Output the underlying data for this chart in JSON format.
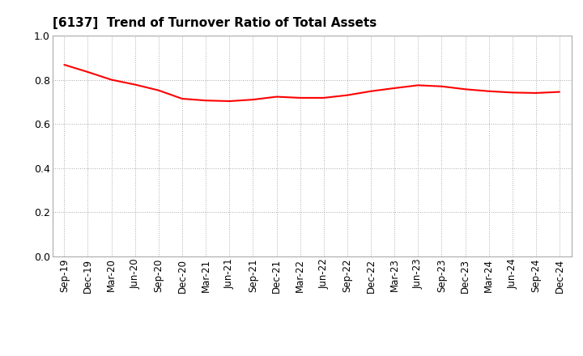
{
  "title": "[6137]  Trend of Turnover Ratio of Total Assets",
  "title_fontsize": 11,
  "line_color": "#FF0000",
  "line_width": 1.5,
  "background_color": "#FFFFFF",
  "grid_color": "#AAAAAA",
  "ylim": [
    0.0,
    1.0
  ],
  "yticks": [
    0.0,
    0.2,
    0.4,
    0.6,
    0.8,
    1.0
  ],
  "x_labels": [
    "Sep-19",
    "Dec-19",
    "Mar-20",
    "Jun-20",
    "Sep-20",
    "Dec-20",
    "Mar-21",
    "Jun-21",
    "Sep-21",
    "Dec-21",
    "Mar-22",
    "Jun-22",
    "Sep-22",
    "Dec-22",
    "Mar-23",
    "Jun-23",
    "Sep-23",
    "Dec-23",
    "Mar-24",
    "Jun-24",
    "Sep-24",
    "Dec-24"
  ],
  "values": [
    0.868,
    0.835,
    0.8,
    0.778,
    0.752,
    0.714,
    0.706,
    0.703,
    0.71,
    0.723,
    0.718,
    0.718,
    0.73,
    0.748,
    0.762,
    0.775,
    0.77,
    0.757,
    0.748,
    0.742,
    0.74,
    0.745
  ],
  "tick_fontsize": 8.5,
  "ytick_fontsize": 9
}
